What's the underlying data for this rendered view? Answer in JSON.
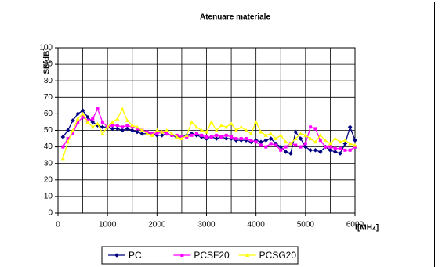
{
  "chart_data": {
    "type": "line",
    "title": "Atenuare materiale",
    "y_label": "SE[dB]",
    "x_label": "f[MHz]",
    "x": [
      100,
      200,
      300,
      400,
      500,
      600,
      700,
      800,
      900,
      1000,
      1100,
      1200,
      1300,
      1400,
      1500,
      1600,
      1700,
      1800,
      1900,
      2000,
      2100,
      2200,
      2300,
      2400,
      2500,
      2600,
      2700,
      2800,
      2900,
      3000,
      3100,
      3200,
      3300,
      3400,
      3500,
      3600,
      3700,
      3800,
      3900,
      4000,
      4100,
      4200,
      4300,
      4400,
      4500,
      4600,
      4700,
      4800,
      4900,
      5000,
      5100,
      5200,
      5300,
      5400,
      5500,
      5600,
      5700,
      5800,
      5900,
      6000
    ],
    "series": [
      {
        "name": "PC",
        "color": "#000080",
        "marker": "diamond",
        "values": [
          46,
          50,
          56,
          60,
          62,
          58,
          55,
          53,
          52,
          52,
          51,
          51,
          50,
          51,
          50,
          49,
          48,
          48,
          48,
          47,
          47,
          48,
          47,
          46,
          46,
          47,
          48,
          47,
          46,
          45,
          46,
          45,
          46,
          45,
          45,
          44,
          44,
          44,
          43,
          44,
          43,
          44,
          45,
          42,
          40,
          37,
          36,
          49,
          45,
          40,
          38,
          38,
          37,
          40,
          38,
          37,
          36,
          42,
          52,
          44
        ]
      },
      {
        "name": "PCSF20",
        "color": "#ff00ff",
        "marker": "square",
        "values": [
          40,
          45,
          48,
          55,
          58,
          56,
          57,
          63,
          55,
          52,
          53,
          53,
          52,
          53,
          52,
          51,
          50,
          49,
          48,
          48,
          49,
          48,
          47,
          47,
          46,
          46,
          47,
          48,
          47,
          46,
          46,
          47,
          46,
          47,
          46,
          45,
          45,
          45,
          44,
          43,
          41,
          40,
          42,
          41,
          38,
          40,
          42,
          41,
          40,
          42,
          52,
          51,
          44,
          40,
          40,
          39,
          39,
          38,
          38,
          40
        ]
      },
      {
        "name": "PCSG20",
        "color": "#ffff00",
        "marker": "triangle",
        "values": [
          33,
          43,
          50,
          57,
          60,
          55,
          52,
          54,
          48,
          52,
          55,
          57,
          63,
          56,
          53,
          52,
          50,
          48,
          47,
          50,
          49,
          50,
          48,
          46,
          45,
          47,
          55,
          52,
          50,
          49,
          55,
          50,
          53,
          52,
          54,
          50,
          52,
          50,
          48,
          55,
          49,
          47,
          48,
          45,
          47,
          43,
          42,
          45,
          48,
          47,
          45,
          43,
          47,
          44,
          42,
          45,
          43,
          44,
          42,
          41
        ]
      }
    ],
    "xlim": [
      0,
      6000
    ],
    "xticks": [
      0,
      1000,
      2000,
      3000,
      4000,
      5000,
      6000
    ],
    "xminor_ticks": [
      500,
      1500,
      2500,
      3500,
      4500,
      5500
    ],
    "ylim": [
      0,
      100
    ],
    "yticks": [
      0,
      10,
      20,
      30,
      40,
      50,
      60,
      70,
      80,
      90,
      100
    ],
    "grid": true,
    "legend": "bottom"
  }
}
